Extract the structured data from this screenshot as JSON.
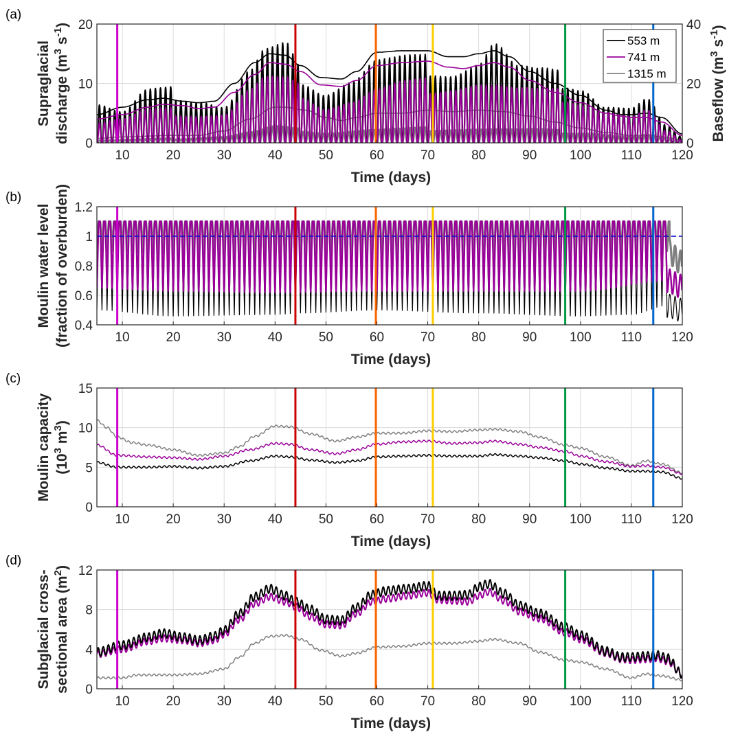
{
  "figure": {
    "event_lines": [
      {
        "day": 9.0,
        "color": "#CC00CC"
      },
      {
        "day": 44.0,
        "color": "#CC0000"
      },
      {
        "day": 59.8,
        "color": "#FF6600"
      },
      {
        "day": 71.0,
        "color": "#FFCC00"
      },
      {
        "day": 97.0,
        "color": "#009944"
      },
      {
        "day": 114.3,
        "color": "#0066CC"
      }
    ],
    "series_colors": {
      "553 m": "#000000",
      "741 m": "#990099",
      "1315 m": "#808080"
    }
  },
  "chart_data": [
    {
      "id": "a",
      "panel_label": "(a)",
      "type": "line",
      "title": "",
      "xlabel": "Time (days)",
      "ylabel_lines": [
        "Supraglacial",
        "discharge (m3 s-1)"
      ],
      "ylabel_display": [
        "Supraglacial",
        "discharge (m",
        "3",
        " s",
        "-1",
        ")"
      ],
      "y2label_display": [
        "Baseflow (m",
        "3",
        " s",
        "-1",
        ")"
      ],
      "xlim": [
        5,
        120
      ],
      "ylim": [
        0,
        20
      ],
      "y2lim": [
        0,
        40
      ],
      "xticks": [
        10,
        20,
        30,
        40,
        50,
        60,
        70,
        80,
        90,
        100,
        110,
        120
      ],
      "yticks": [
        0,
        10,
        20
      ],
      "y2ticks": [
        0,
        20,
        40
      ],
      "grid": true,
      "legend": {
        "placement": "top-right",
        "entries": [
          "553 m",
          "741 m",
          "1315 m"
        ]
      },
      "series": [
        {
          "name": "553 m",
          "kind": "diurnal-discharge",
          "peak_envelope": {
            "x": [
              5,
              10,
              15,
              20,
              25,
              30,
              35,
              38,
              42,
              45,
              50,
              55,
              60,
              65,
              70,
              75,
              80,
              83,
              88,
              92,
              97,
              100,
              105,
              110,
              113,
              117,
              120
            ],
            "y": [
              7.5,
              5.8,
              9.5,
              9.5,
              8.5,
              7,
              13.5,
              17,
              17.5,
              13,
              10,
              12,
              15.5,
              15.5,
              15,
              14,
              15.5,
              19,
              14,
              13,
              12,
              11,
              7,
              6.5,
              8,
              3,
              1
            ]
          }
        },
        {
          "name": "741 m",
          "kind": "diurnal-discharge",
          "peak_envelope": {
            "x": [
              5,
              10,
              15,
              20,
              25,
              30,
              35,
              38,
              42,
              45,
              50,
              55,
              60,
              65,
              70,
              75,
              80,
              83,
              88,
              92,
              97,
              100,
              105,
              110,
              113,
              117,
              120
            ],
            "y": [
              4,
              4.5,
              6,
              6,
              5.5,
              5.5,
              10,
              12,
              11.5,
              10,
              7,
              8,
              10,
              11,
              11,
              11,
              11.5,
              11,
              10,
              9.5,
              9,
              8,
              6,
              5,
              6,
              2,
              0.5
            ]
          }
        },
        {
          "name": "1315 m",
          "kind": "diurnal-discharge",
          "peak_envelope": {
            "x": [
              5,
              20,
              30,
              35,
              40,
              45,
              50,
              60,
              70,
              80,
              90,
              100,
              110,
              113,
              120
            ],
            "y": [
              0.5,
              0.8,
              1.2,
              2,
              3,
              2.5,
              2,
              2.5,
              2.7,
              2.7,
              2.5,
              2,
              1.2,
              1.5,
              0.3
            ]
          }
        },
        {
          "name": "553 m baseflow",
          "kind": "smooth",
          "axis": "right",
          "x": [
            5,
            10,
            15,
            18,
            22,
            25,
            28,
            32,
            36,
            39,
            42,
            45,
            49,
            53,
            56,
            60,
            65,
            70,
            74,
            77,
            80,
            83,
            86,
            90,
            95,
            100,
            105,
            108,
            110,
            113,
            116,
            120
          ],
          "y": [
            9.5,
            12,
            14.5,
            15,
            14,
            13.5,
            14,
            20,
            27,
            30,
            29.5,
            26,
            22,
            21.5,
            24,
            30.5,
            31,
            31,
            29,
            29,
            30,
            31,
            29,
            24,
            20,
            16,
            11,
            9.5,
            9.5,
            10,
            8.5,
            3
          ]
        },
        {
          "name": "741 m baseflow",
          "kind": "smooth",
          "axis": "right",
          "x": [
            5,
            10,
            15,
            18,
            22,
            25,
            28,
            32,
            36,
            39,
            42,
            45,
            49,
            53,
            56,
            60,
            65,
            70,
            74,
            77,
            80,
            83,
            86,
            90,
            95,
            100,
            105,
            108,
            110,
            113,
            116,
            120
          ],
          "y": [
            8,
            9.5,
            12,
            13,
            12.5,
            11.5,
            12,
            17,
            23,
            27,
            26.5,
            24,
            19.5,
            19,
            21,
            26,
            27,
            27.5,
            25.5,
            25,
            26,
            27,
            25.5,
            21,
            17,
            13.5,
            10,
            9,
            8.5,
            8.5,
            7,
            2.5
          ]
        },
        {
          "name": "1315 m baseflow",
          "kind": "smooth",
          "axis": "right",
          "x": [
            5,
            10,
            20,
            25,
            30,
            35,
            40,
            42,
            46,
            50,
            53,
            56,
            60,
            65,
            70,
            75,
            80,
            85,
            90,
            95,
            100,
            105,
            110,
            113,
            116,
            120
          ],
          "y": [
            1.5,
            2,
            2.5,
            2.5,
            4,
            8,
            12,
            12,
            11,
            8.5,
            7.5,
            8.5,
            10,
            10,
            11,
            10.5,
            11,
            10.5,
            9,
            7,
            5,
            3.5,
            2.5,
            2.5,
            2,
            1
          ]
        }
      ]
    },
    {
      "id": "b",
      "panel_label": "(b)",
      "type": "line",
      "xlabel": "Time (days)",
      "ylabel_display": [
        "Moulin water level",
        "(fraction of overburden)"
      ],
      "xlim": [
        5,
        120
      ],
      "ylim": [
        0.4,
        1.2
      ],
      "xticks": [
        10,
        20,
        30,
        40,
        50,
        60,
        70,
        80,
        90,
        100,
        110,
        120
      ],
      "yticks": [
        0.4,
        0.6,
        0.8,
        1,
        1.2
      ],
      "ytick_labels": [
        "0.4",
        "0.6",
        "0.8",
        "1",
        "1.2"
      ],
      "grid": true,
      "reference_line": {
        "y": 1.0,
        "style": "dashed",
        "color": "#0000CC"
      },
      "series": [
        {
          "name": "553 m",
          "kind": "diurnal-level",
          "max": 1.1,
          "min_x": [
            5,
            20,
            40,
            45,
            60,
            80,
            100,
            110,
            117,
            120
          ],
          "min_y": [
            0.5,
            0.46,
            0.47,
            0.48,
            0.5,
            0.48,
            0.46,
            0.47,
            0.53,
            0.5
          ]
        },
        {
          "name": "741 m",
          "kind": "diurnal-level",
          "max": 1.1,
          "min_x": [
            5,
            20,
            40,
            60,
            80,
            100,
            117,
            120
          ],
          "min_y": [
            0.65,
            0.63,
            0.62,
            0.63,
            0.63,
            0.63,
            0.7,
            0.66
          ]
        },
        {
          "name": "1315 m",
          "kind": "diurnal-level",
          "max": 1.1,
          "min_x": [
            5,
            10,
            20,
            30,
            40,
            50,
            60,
            70,
            80,
            90,
            100,
            110,
            117,
            120
          ],
          "min_y": [
            0.9,
            0.9,
            0.88,
            0.85,
            0.82,
            0.82,
            0.82,
            0.82,
            0.82,
            0.83,
            0.85,
            0.87,
            0.9,
            0.82
          ]
        }
      ]
    },
    {
      "id": "c",
      "panel_label": "(c)",
      "type": "line",
      "xlabel": "Time (days)",
      "ylabel_display": [
        "Moulin capacity",
        "(10",
        "3",
        " m",
        "3",
        ")"
      ],
      "xlim": [
        5,
        120
      ],
      "ylim": [
        0,
        15
      ],
      "xticks": [
        10,
        20,
        30,
        40,
        50,
        60,
        70,
        80,
        90,
        100,
        110,
        120
      ],
      "yticks": [
        0,
        5,
        10,
        15
      ],
      "grid": true,
      "series": [
        {
          "name": "553 m",
          "x": [
            5,
            9,
            15,
            20,
            25,
            30,
            35,
            40,
            43,
            47,
            52,
            56,
            60,
            65,
            70,
            75,
            80,
            83,
            88,
            92,
            97,
            100,
            105,
            110,
            113,
            116,
            120
          ],
          "y": [
            5.6,
            5.0,
            5.0,
            5.1,
            4.9,
            5.1,
            5.8,
            6.4,
            6.3,
            5.9,
            5.6,
            5.8,
            6.3,
            6.4,
            6.5,
            6.4,
            6.4,
            6.6,
            6.4,
            6.2,
            5.8,
            5.4,
            4.9,
            4.5,
            4.5,
            4.4,
            3.6
          ]
        },
        {
          "name": "741 m",
          "x": [
            5,
            9,
            15,
            20,
            25,
            30,
            35,
            40,
            43,
            47,
            52,
            56,
            60,
            65,
            70,
            75,
            80,
            83,
            88,
            92,
            97,
            100,
            105,
            110,
            113,
            116,
            120
          ],
          "y": [
            7.8,
            6.5,
            6.3,
            6.2,
            6.0,
            6.4,
            7.2,
            8.0,
            7.9,
            7.2,
            6.7,
            7.2,
            7.9,
            8.2,
            8.3,
            8.0,
            8.1,
            8.3,
            7.9,
            7.5,
            7.0,
            6.4,
            5.7,
            5.1,
            5.2,
            5.0,
            4.2
          ]
        },
        {
          "name": "1315 m",
          "x": [
            5,
            7,
            9,
            12,
            15,
            20,
            25,
            30,
            33,
            36,
            40,
            43,
            47,
            52,
            56,
            60,
            65,
            70,
            75,
            80,
            83,
            88,
            92,
            97,
            100,
            105,
            110,
            113,
            116,
            120
          ],
          "y": [
            10.9,
            10.0,
            8.8,
            8.1,
            7.8,
            7.2,
            6.5,
            6.8,
            7.6,
            8.9,
            10.2,
            10.1,
            9.2,
            8.3,
            8.8,
            9.3,
            9.3,
            9.6,
            9.5,
            9.7,
            9.8,
            9.5,
            8.8,
            7.8,
            7.4,
            6.3,
            5.2,
            5.8,
            5.4,
            4.3
          ]
        }
      ]
    },
    {
      "id": "d",
      "panel_label": "(d)",
      "type": "line",
      "xlabel": "Time (days)",
      "ylabel_display": [
        "Subglacial cross-",
        "sectional area (m",
        "2",
        ")"
      ],
      "xlim": [
        5,
        120
      ],
      "ylim": [
        0,
        12
      ],
      "xticks": [
        10,
        20,
        30,
        40,
        50,
        60,
        70,
        80,
        90,
        100,
        110,
        120
      ],
      "yticks": [
        0,
        4,
        8,
        12
      ],
      "grid": true,
      "series": [
        {
          "name": "553 m",
          "x": [
            5,
            10,
            15,
            18,
            22,
            25,
            28,
            30,
            33,
            36,
            39,
            42,
            44,
            47,
            50,
            53,
            56,
            59,
            62,
            66,
            70,
            72,
            75,
            78,
            80,
            82,
            85,
            88,
            92,
            97,
            100,
            105,
            108,
            110,
            113,
            115,
            117,
            120
          ],
          "y": [
            3.7,
            4.4,
            5.2,
            5.6,
            5.2,
            4.9,
            5.3,
            5.9,
            7.6,
            9.3,
            10.1,
            9.4,
            8.8,
            8.0,
            7.0,
            6.9,
            8.2,
            9.5,
            9.9,
            10.1,
            10.4,
            9.4,
            9.4,
            9.5,
            10.3,
            10.6,
            9.6,
            8.4,
            7.6,
            6.2,
            5.4,
            3.8,
            3.2,
            3.2,
            3.3,
            3.4,
            3.1,
            1.5
          ]
        },
        {
          "name": "741 m",
          "x": [
            5,
            10,
            15,
            18,
            22,
            25,
            28,
            30,
            33,
            36,
            39,
            42,
            44,
            47,
            50,
            53,
            56,
            59,
            62,
            66,
            70,
            72,
            75,
            78,
            80,
            82,
            85,
            88,
            92,
            97,
            100,
            105,
            108,
            110,
            113,
            115,
            117,
            120
          ],
          "y": [
            3.5,
            4.0,
            4.8,
            5.1,
            4.9,
            4.6,
            4.9,
            5.5,
            7.0,
            8.6,
            9.3,
            8.8,
            8.3,
            7.3,
            6.5,
            6.4,
            7.6,
            8.8,
            9.1,
            9.4,
            9.7,
            9.0,
            8.9,
            8.8,
            9.4,
            9.8,
            8.9,
            7.8,
            7.1,
            5.7,
            5.0,
            3.6,
            3.0,
            2.9,
            3.0,
            3.1,
            2.8,
            1.5
          ]
        },
        {
          "name": "1315 m",
          "x": [
            5,
            10,
            13,
            20,
            25,
            30,
            33,
            36,
            39,
            42,
            45,
            49,
            53,
            56,
            60,
            65,
            70,
            75,
            80,
            83,
            88,
            92,
            97,
            100,
            105,
            110,
            113,
            116,
            120
          ],
          "y": [
            1.1,
            1.1,
            1.4,
            1.4,
            1.5,
            2.0,
            3.2,
            4.6,
            5.3,
            5.4,
            5.0,
            3.9,
            3.3,
            3.6,
            4.2,
            4.3,
            4.6,
            4.6,
            4.8,
            5.0,
            4.6,
            3.7,
            2.9,
            2.7,
            2.0,
            1.1,
            1.5,
            1.3,
            0.9
          ]
        }
      ]
    }
  ]
}
